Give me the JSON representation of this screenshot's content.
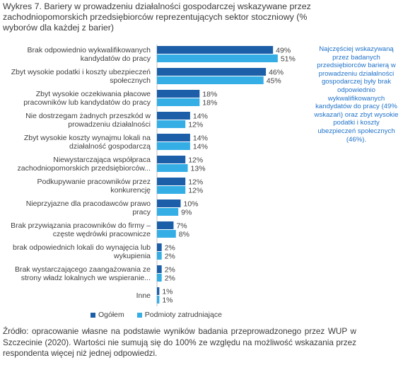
{
  "title": "Wykres 7. Bariery w prowadzeniu działalności gospodarczej wskazywane przez zachodniopomorskich przedsiębiorców reprezentujących sektor stoczniowy (% wyborów dla każdej z barier)",
  "note": "Najczęściej wskazywaną przez badanych przedsiębiorców barierą w prowadzeniu działalności gospodarczej były brak odpowiednio wykwalifikowanych kandydatów do pracy (49% wskazań) oraz zbyt wysokie podatki i koszty ubezpieczeń społecznych (46%).",
  "source": "Źródło: opracowanie własne na podstawie wyników badania przeprowadzonego przez WUP w Szczecinie (2020). Wartości nie sumują się do 100% ze względu na możliwość wskazania przez respondenta więcej niż jednej odpowiedzi.",
  "colors": {
    "series1": "#1c5fa8",
    "series2": "#35aee6"
  },
  "chart_data": {
    "type": "bar",
    "orientation": "horizontal",
    "categories": [
      [
        "Brak odpowiednio wykwalifikowanych",
        "kandydatów do pracy"
      ],
      [
        "Zbyt wysokie podatki i koszty ubezpieczeń",
        "społecznych"
      ],
      [
        "Zbyt wysokie oczekiwania płacowe",
        "pracowników lub kandydatów do pracy"
      ],
      [
        "Nie dostrzegam żadnych przeszkód w",
        "prowadzeniu działalności"
      ],
      [
        "Zbyt wysokie koszty wynajmu lokali na",
        "działalność gospodarczą"
      ],
      [
        "Niewystarczająca współpraca",
        "zachodniopomorskich przedsiębiorców..."
      ],
      [
        "Podkupywanie pracowników przez",
        "konkurencję"
      ],
      [
        "Nieprzyjazne dla pracodawców prawo",
        "pracy"
      ],
      [
        "Brak przywiązania pracowników do firmy –",
        "częste wędrówki pracownicze"
      ],
      [
        "brak odpowiednich lokali do wynajęcia lub",
        "wykupienia"
      ],
      [
        "Brak wystarczającego zaangażowania ze",
        "strony władz lokalnych we wspieranie..."
      ],
      [
        "Inne"
      ]
    ],
    "series": [
      {
        "name": "Ogółem",
        "values": [
          49,
          46,
          18,
          14,
          14,
          12,
          12,
          10,
          7,
          2,
          2,
          1
        ]
      },
      {
        "name": "Podmioty zatrudniające",
        "values": [
          51,
          45,
          18,
          12,
          14,
          13,
          12,
          9,
          8,
          2,
          2,
          1
        ]
      }
    ],
    "value_suffix": "%",
    "legend": "bottom"
  }
}
